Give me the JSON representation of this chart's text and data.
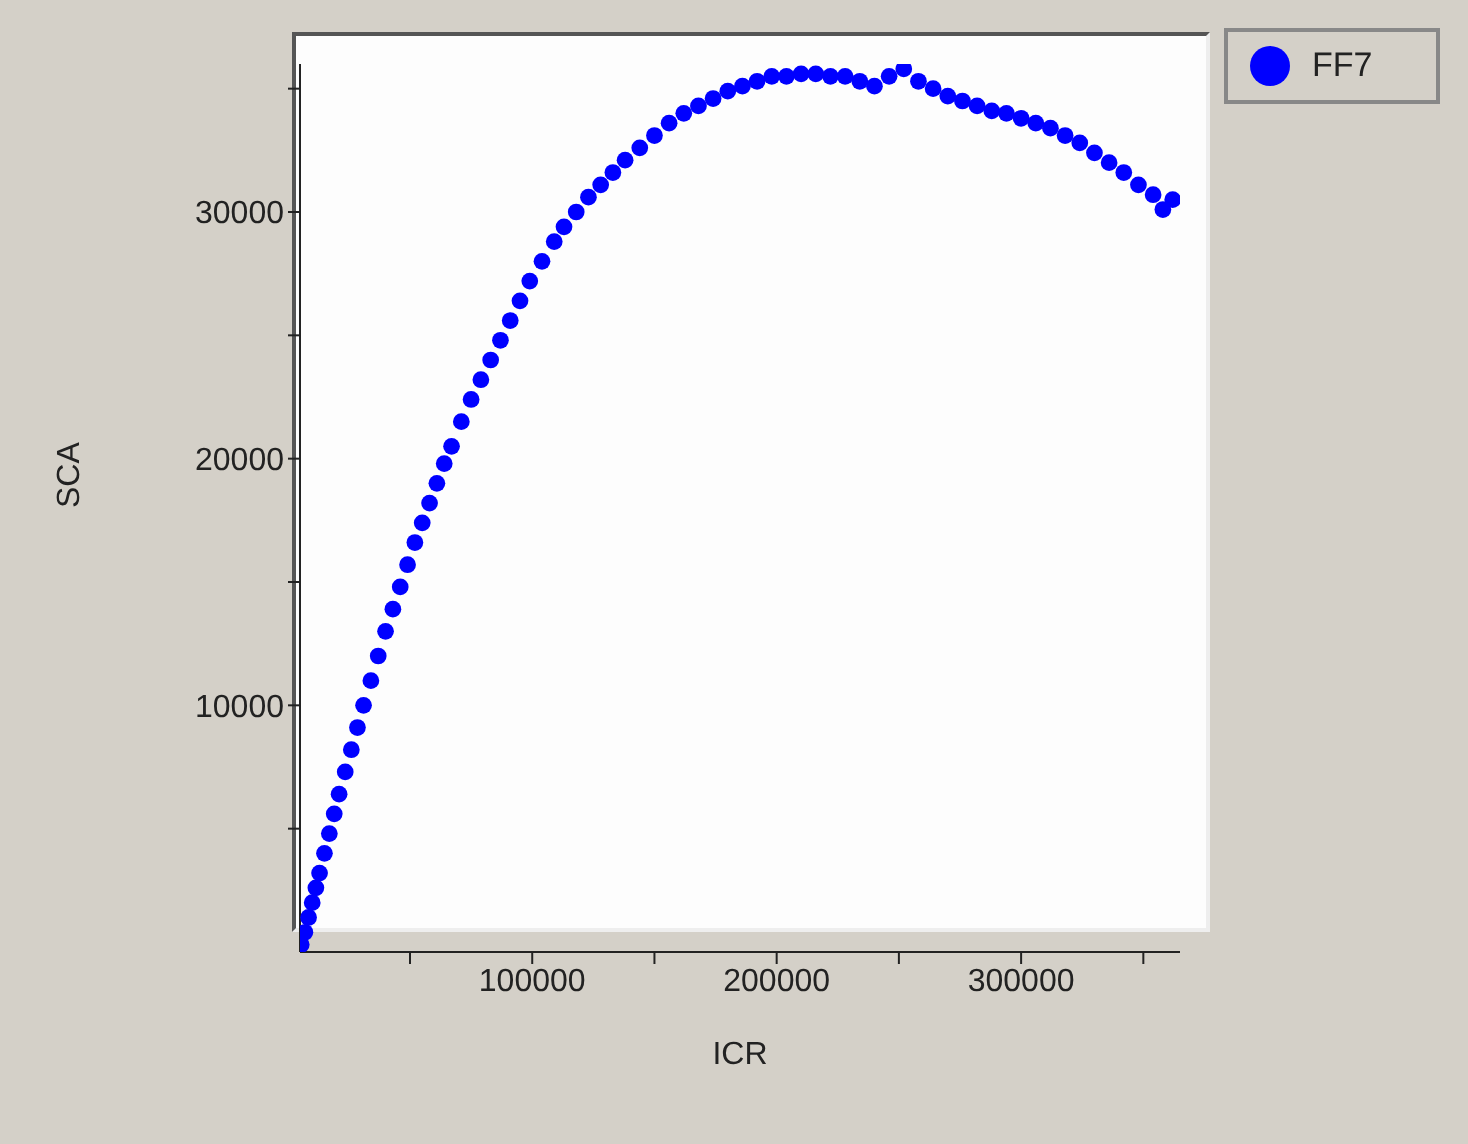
{
  "chart_data": {
    "type": "scatter",
    "xlabel": "ICR",
    "ylabel": "SCA",
    "xlim": [
      5000,
      365000
    ],
    "ylim": [
      0,
      36000
    ],
    "xticks": [
      {
        "value": 50000,
        "label": null
      },
      100000,
      {
        "value": 150000,
        "label": null
      },
      200000,
      {
        "value": 250000,
        "label": null
      },
      300000,
      {
        "value": 350000,
        "label": null
      }
    ],
    "yticks": [
      {
        "value": 5000,
        "label": null
      },
      10000,
      {
        "value": 15000,
        "label": null
      },
      20000,
      {
        "value": 25000,
        "label": null
      },
      30000,
      {
        "value": 35000,
        "label": null
      }
    ],
    "legend": "top right",
    "marker": "circle",
    "series": [
      {
        "name": "FF7",
        "color": "#0000ff",
        "x": [
          5500,
          7000,
          8500,
          10000,
          11500,
          13000,
          15000,
          17000,
          19000,
          21000,
          23500,
          26000,
          28500,
          31000,
          34000,
          37000,
          40000,
          43000,
          46000,
          49000,
          52000,
          55000,
          58000,
          61000,
          64000,
          67000,
          71000,
          75000,
          79000,
          83000,
          87000,
          91000,
          95000,
          99000,
          104000,
          109000,
          113000,
          118000,
          123000,
          128000,
          133000,
          138000,
          144000,
          150000,
          156000,
          162000,
          168000,
          174000,
          180000,
          186000,
          192000,
          198000,
          204000,
          210000,
          216000,
          222000,
          228000,
          234000,
          240000,
          246000,
          252000,
          258000,
          264000,
          270000,
          276000,
          282000,
          288000,
          294000,
          300000,
          306000,
          312000,
          318000,
          324000,
          330000,
          336000,
          342000,
          348000,
          354000,
          358000,
          362000
        ],
        "values": [
          300,
          800,
          1400,
          2000,
          2600,
          3200,
          4000,
          4800,
          5600,
          6400,
          7300,
          8200,
          9100,
          10000,
          11000,
          12000,
          13000,
          13900,
          14800,
          15700,
          16600,
          17400,
          18200,
          19000,
          19800,
          20500,
          21500,
          22400,
          23200,
          24000,
          24800,
          25600,
          26400,
          27200,
          28000,
          28800,
          29400,
          30000,
          30600,
          31100,
          31600,
          32100,
          32600,
          33100,
          33600,
          34000,
          34300,
          34600,
          34900,
          35100,
          35300,
          35500,
          35500,
          35600,
          35600,
          35500,
          35500,
          35300,
          35100,
          35500,
          35800,
          35300,
          35000,
          34700,
          34500,
          34300,
          34100,
          34000,
          33800,
          33600,
          33400,
          33100,
          32800,
          32400,
          32000,
          31600,
          31100,
          30700,
          30100,
          30500
        ]
      }
    ]
  }
}
